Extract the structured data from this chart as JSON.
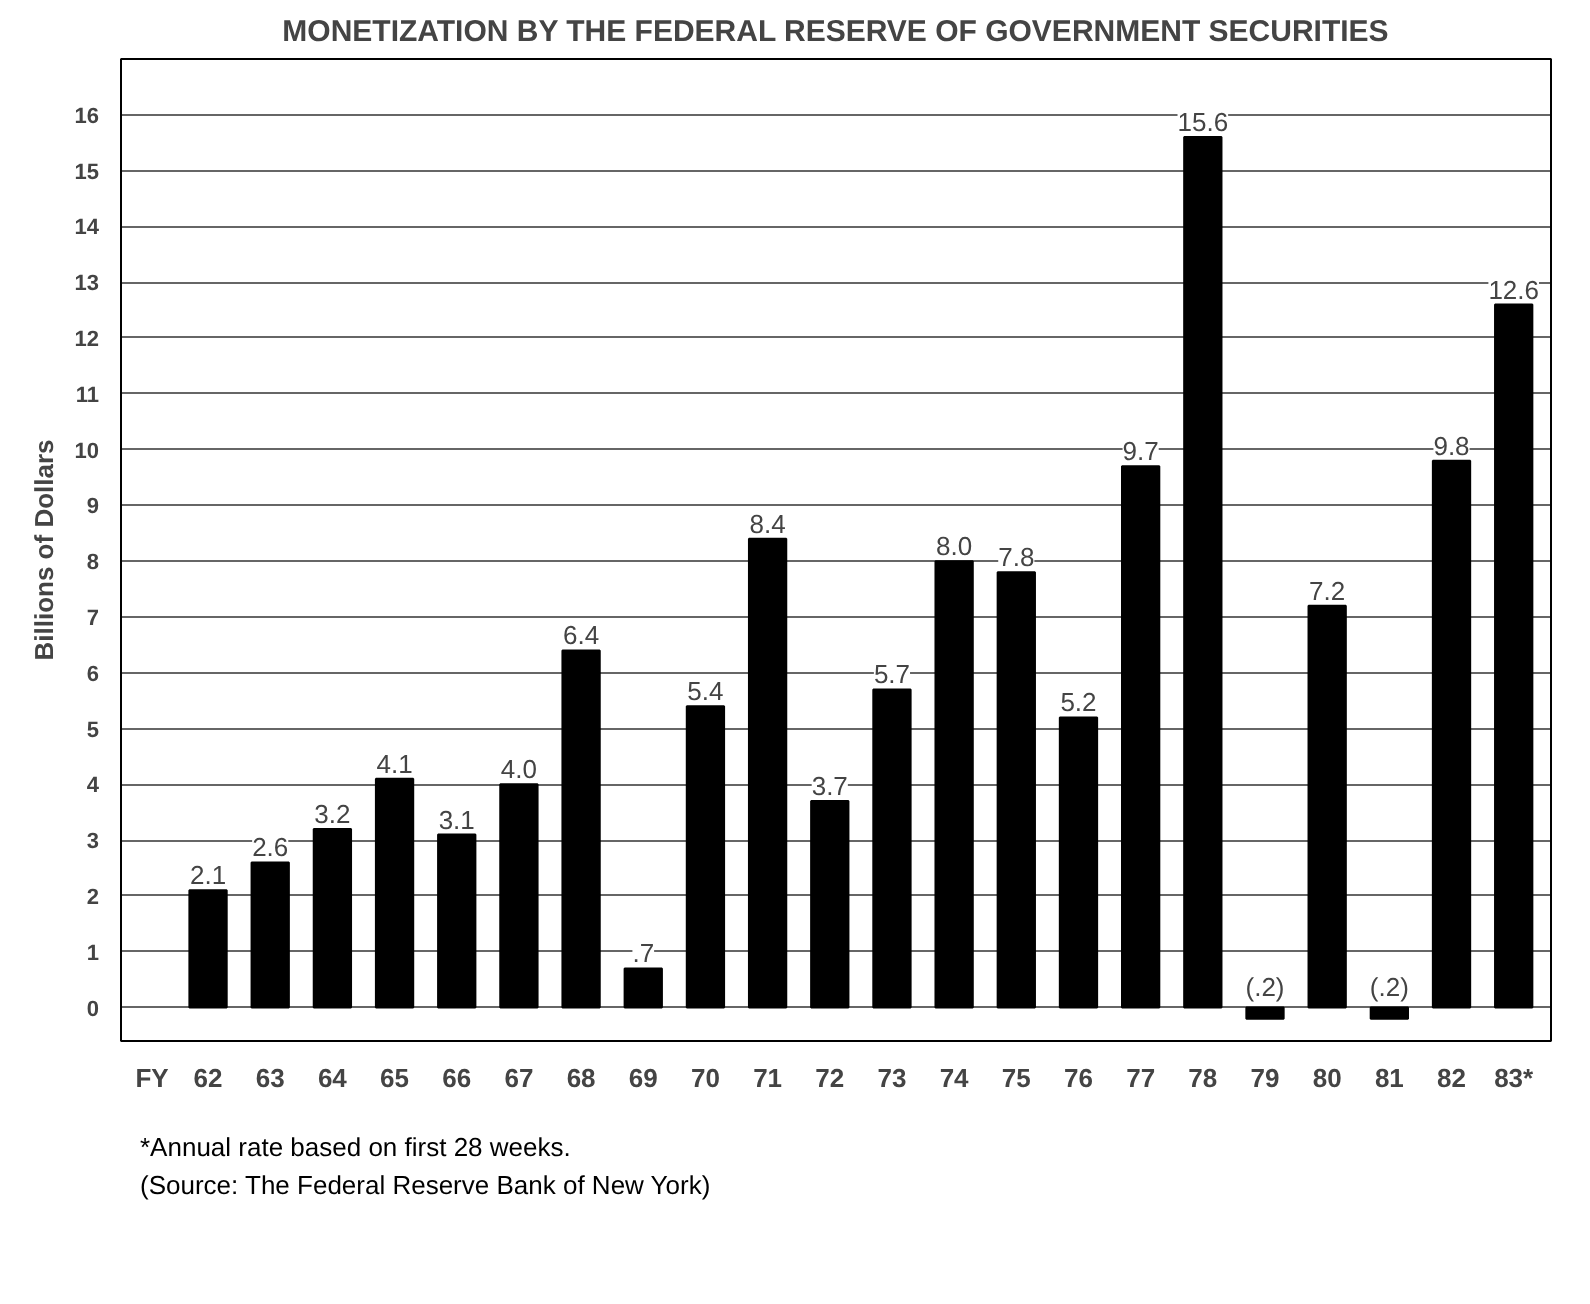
{
  "chart_data": {
    "type": "bar",
    "title": "MONETIZATION BY THE FEDERAL RESERVE OF GOVERNMENT SECURITIES",
    "xlabel": "FY",
    "ylabel": "Billions of Dollars",
    "categories": [
      "62",
      "63",
      "64",
      "65",
      "66",
      "67",
      "68",
      "69",
      "70",
      "71",
      "72",
      "73",
      "74",
      "75",
      "76",
      "77",
      "78",
      "79",
      "80",
      "81",
      "82",
      "83*"
    ],
    "values": [
      2.1,
      2.6,
      3.2,
      4.1,
      3.1,
      4.0,
      6.4,
      0.7,
      5.4,
      8.4,
      3.7,
      5.7,
      8.0,
      7.8,
      5.2,
      9.7,
      15.6,
      -0.2,
      7.2,
      -0.2,
      9.8,
      12.6
    ],
    "value_labels": [
      "2.1",
      "2.6",
      "3.2",
      "4.1",
      "3.1",
      "4.0",
      "6.4",
      ".7",
      "5.4",
      "8.4",
      "3.7",
      "5.7",
      "8.0",
      "7.8",
      "5.2",
      "9.7",
      "15.6",
      "(.2)",
      "7.2",
      "(.2)",
      "9.8",
      "12.6"
    ],
    "color": "#000000",
    "ylim": [
      -0.6,
      17
    ],
    "yticks": [
      0,
      1,
      2,
      3,
      4,
      5,
      6,
      7,
      8,
      9,
      10,
      11,
      12,
      13,
      14,
      15,
      16
    ],
    "grid": "y",
    "annotations": [
      "*Annual rate based on first 28 weeks.",
      "(Source: The Federal Reserve Bank of New York)"
    ]
  }
}
